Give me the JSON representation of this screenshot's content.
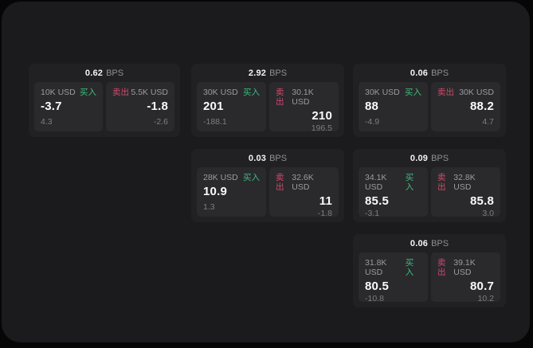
{
  "labels": {
    "bps": "BPS",
    "buy": "买入",
    "sell": "卖出"
  },
  "colors": {
    "background": "#060606",
    "panel": "#1b1b1d",
    "card": "#212124",
    "tile": "#2a2a2d",
    "buy_green": "#3dbd7d",
    "sell_pink": "#cf4a6a"
  },
  "cards": [
    {
      "bps": "0.62",
      "buy": {
        "amount": "10K USD",
        "value": "-3.7",
        "sub": "4.3"
      },
      "sell": {
        "amount": "5.5K USD",
        "value": "-1.8",
        "sub": "-2.6"
      }
    },
    {
      "bps": "2.92",
      "buy": {
        "amount": "30K USD",
        "value": "201",
        "sub": "-188.1"
      },
      "sell": {
        "amount": "30.1K USD",
        "value": "210",
        "sub": "196.5"
      }
    },
    {
      "bps": "0.06",
      "buy": {
        "amount": "30K USD",
        "value": "88",
        "sub": "-4.9"
      },
      "sell": {
        "amount": "30K USD",
        "value": "88.2",
        "sub": "4.7"
      }
    },
    {
      "bps": "0.03",
      "buy": {
        "amount": "28K USD",
        "value": "10.9",
        "sub": "1.3"
      },
      "sell": {
        "amount": "32.6K USD",
        "value": "11",
        "sub": "-1.8"
      }
    },
    {
      "bps": "0.09",
      "buy": {
        "amount": "34.1K USD",
        "value": "85.5",
        "sub": "-3.1"
      },
      "sell": {
        "amount": "32.8K USD",
        "value": "85.8",
        "sub": "3.0"
      }
    },
    {
      "bps": "0.06",
      "buy": {
        "amount": "31.8K USD",
        "value": "80.5",
        "sub": "-10.8"
      },
      "sell": {
        "amount": "39.1K USD",
        "value": "80.7",
        "sub": "10.2"
      }
    }
  ]
}
